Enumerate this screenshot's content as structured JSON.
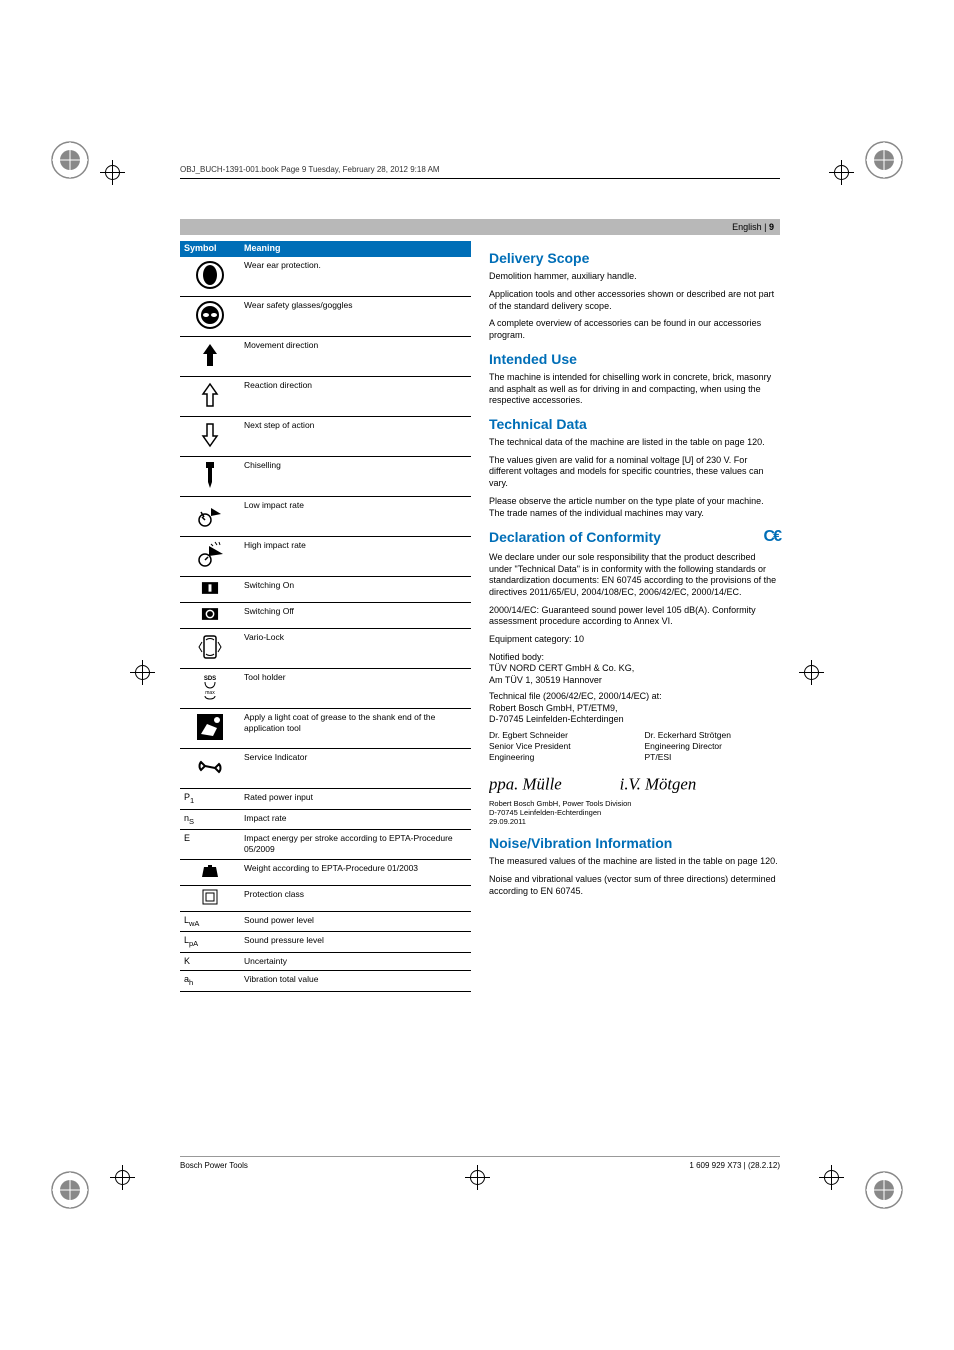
{
  "book_header": "OBJ_BUCH-1391-001.book  Page 9  Tuesday, February 28, 2012  9:18 AM",
  "lang_label": "English | ",
  "page_num": "9",
  "table": {
    "head_symbol": "Symbol",
    "head_meaning": "Meaning",
    "rows": [
      {
        "icon": "ear",
        "text": "Wear ear protection."
      },
      {
        "icon": "goggles",
        "text": "Wear safety glasses/goggles"
      },
      {
        "icon": "arrow-up",
        "text": "Movement direction"
      },
      {
        "icon": "arrow-ol",
        "text": "Reaction direction"
      },
      {
        "icon": "arrow-dn",
        "text": "Next step of action"
      },
      {
        "icon": "chisel",
        "text": "Chiselling"
      },
      {
        "icon": "low",
        "text": "Low impact rate"
      },
      {
        "icon": "high",
        "text": "High impact rate"
      },
      {
        "icon": "on",
        "text": "Switching On"
      },
      {
        "icon": "off",
        "text": "Switching Off"
      },
      {
        "icon": "vario",
        "text": "Vario-Lock"
      },
      {
        "icon": "holder",
        "text": "Tool holder"
      },
      {
        "icon": "grease",
        "text": "Apply a light coat of grease to the shank end of the application tool"
      },
      {
        "icon": "service",
        "text": "Service Indicator"
      },
      {
        "sym": "P₁",
        "text": "Rated power input"
      },
      {
        "sym": "nₛ",
        "text": "Impact rate"
      },
      {
        "sym": "E",
        "text": "Impact energy per stroke according to EPTA-Procedure 05/2009"
      },
      {
        "icon": "weight",
        "text": "Weight according to EPTA-Procedure 01/2003"
      },
      {
        "icon": "class",
        "text": "Protection class"
      },
      {
        "sym": "L_wA",
        "text": "Sound power level"
      },
      {
        "sym": "L_pA",
        "text": "Sound pressure level"
      },
      {
        "sym": "K",
        "text": "Uncertainty"
      },
      {
        "sym": "aₕ",
        "text": "Vibration total value"
      }
    ]
  },
  "right": {
    "h_delivery": "Delivery Scope",
    "delivery_p1": "Demolition hammer, auxiliary handle.",
    "delivery_p2": "Application tools and other accessories shown or described are not part of the standard delivery scope.",
    "delivery_p3": "A complete overview of accessories can be found in our accessories program.",
    "h_intended": "Intended Use",
    "intended_p1": "The machine is intended for chiselling work in concrete, brick, masonry and asphalt as well as for driving in and compacting, when using the respective accessories.",
    "h_tech": "Technical Data",
    "tech_p1": "The technical data of the machine are listed in the table on page 120.",
    "tech_p2": "The values given are valid for a nominal voltage [U] of 230 V. For different voltages and models for specific countries, these values can vary.",
    "tech_p3": "Please observe the article number on the type plate of your machine. The trade names of the individual machines may vary.",
    "h_decl": "Declaration of Conformity",
    "decl_p1": "We declare under our sole responsibility that the product described under \"Technical Data\" is in conformity with the following standards or standardization documents: EN 60745 according to the provisions of the directives 2011/65/EU, 2004/108/EC, 2006/42/EC, 2000/14/EC.",
    "decl_p2": "2000/14/EC: Guaranteed sound power level 105 dB(A). Conformity assessment procedure according to Annex VI.",
    "decl_p3": "Equipment category: 10",
    "decl_p4": "Notified body:",
    "decl_p5": "TÜV NORD CERT GmbH & Co. KG,",
    "decl_p6": "Am TÜV 1, 30519 Hannover",
    "decl_p7": "Technical file (2006/42/EC, 2000/14/EC) at:",
    "decl_p8": "Robert Bosch GmbH, PT/ETM9,",
    "decl_p9": "D-70745 Leinfelden-Echterdingen",
    "sig1_name": "Dr. Egbert Schneider",
    "sig1_title": "Senior Vice President",
    "sig1_dept": "Engineering",
    "sig2_name": "Dr. Eckerhard Strötgen",
    "sig2_title": "Engineering Director",
    "sig2_dept": "PT/ESI",
    "fine1": "Robert Bosch GmbH, Power Tools Division",
    "fine2": "D-70745 Leinfelden-Echterdingen",
    "fine3": "29.09.2011",
    "h_noise": "Noise/Vibration Information",
    "noise_p1": "The measured values of the machine are listed in the table on page 120.",
    "noise_p2": "Noise and vibrational values (vector sum of three directions) determined according to EN 60745."
  },
  "footer_left": "Bosch Power Tools",
  "footer_right": "1 609 929 X73 | (28.2.12)"
}
